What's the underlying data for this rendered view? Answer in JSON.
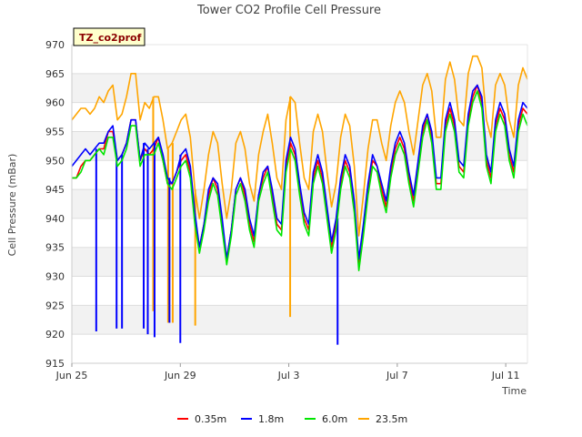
{
  "chart_data": {
    "type": "line",
    "title": "Tower CO2 Profile Cell Pressure",
    "badge": "TZ_co2prof",
    "xlabel": "Time",
    "ylabel": "Cell Pressure (mBar)",
    "ylim": [
      915,
      970
    ],
    "yticks": [
      915,
      920,
      925,
      930,
      935,
      940,
      945,
      950,
      955,
      960,
      965,
      970
    ],
    "xlim": [
      0,
      16.8
    ],
    "xticks": [
      {
        "value": 0,
        "label": "Jun 25"
      },
      {
        "value": 4,
        "label": "Jun 29"
      },
      {
        "value": 8,
        "label": "Jul 3"
      },
      {
        "value": 12,
        "label": "Jul 7"
      },
      {
        "value": 16,
        "label": "Jul 11"
      }
    ],
    "x_units": "days since Jun 25",
    "grid": true,
    "legend_position": "bottom",
    "series": [
      {
        "name": "0.35m",
        "color": "#ff0000",
        "values": [
          947,
          947,
          949,
          950,
          950,
          951,
          952,
          952,
          955,
          955,
          950,
          951,
          953,
          957,
          957,
          950,
          952,
          951,
          952,
          954,
          950,
          946,
          946,
          948,
          950,
          951,
          948,
          940,
          935,
          939,
          944,
          947,
          945,
          939,
          933,
          938,
          945,
          947,
          944,
          939,
          936,
          944,
          947,
          949,
          944,
          939,
          938,
          949,
          953,
          951,
          945,
          940,
          938,
          947,
          950,
          947,
          941,
          935,
          939,
          946,
          950,
          948,
          942,
          932,
          938,
          945,
          950,
          949,
          945,
          942,
          948,
          952,
          954,
          952,
          947,
          943,
          949,
          955,
          958,
          954,
          946,
          946,
          956,
          959,
          956,
          949,
          948,
          957,
          961,
          963,
          960,
          950,
          947,
          956,
          959,
          957,
          951,
          948,
          956,
          959,
          958
        ]
      },
      {
        "name": "1.8m",
        "color": "#0000ff",
        "values": [
          949,
          950,
          951,
          952,
          951,
          952,
          953,
          953,
          955,
          956,
          950,
          951,
          953,
          957,
          957,
          950,
          953,
          952,
          953,
          954,
          951,
          947,
          946,
          948,
          951,
          952,
          949,
          941,
          935,
          939,
          945,
          947,
          946,
          940,
          933,
          938,
          945,
          947,
          945,
          940,
          937,
          944,
          948,
          949,
          945,
          940,
          939,
          950,
          954,
          952,
          946,
          941,
          939,
          948,
          951,
          948,
          942,
          936,
          940,
          947,
          951,
          949,
          943,
          933,
          939,
          946,
          951,
          949,
          946,
          943,
          949,
          953,
          955,
          953,
          948,
          944,
          950,
          956,
          958,
          955,
          947,
          947,
          957,
          960,
          957,
          950,
          949,
          958,
          962,
          963,
          961,
          951,
          948,
          957,
          960,
          958,
          952,
          949,
          957,
          960,
          959
        ]
      },
      {
        "name": "6.0m",
        "color": "#00e600",
        "values": [
          947,
          947,
          948,
          950,
          950,
          951,
          952,
          951,
          954,
          954,
          949,
          950,
          952,
          956,
          956,
          949,
          951,
          951,
          951,
          953,
          950,
          946,
          945,
          947,
          949,
          950,
          947,
          939,
          934,
          938,
          943,
          946,
          944,
          938,
          932,
          937,
          944,
          946,
          943,
          938,
          935,
          943,
          946,
          948,
          943,
          938,
          937,
          948,
          952,
          950,
          944,
          939,
          937,
          946,
          949,
          946,
          940,
          934,
          938,
          945,
          949,
          947,
          941,
          931,
          937,
          944,
          949,
          948,
          944,
          941,
          947,
          951,
          953,
          951,
          946,
          942,
          948,
          954,
          957,
          953,
          945,
          945,
          955,
          958,
          955,
          948,
          947,
          956,
          960,
          962,
          959,
          949,
          946,
          955,
          958,
          956,
          950,
          947,
          955,
          958,
          956
        ]
      },
      {
        "name": "23.5m",
        "color": "#ffa500",
        "values": [
          957,
          958,
          959,
          959,
          958,
          959,
          961,
          960,
          962,
          963,
          957,
          958,
          961,
          965,
          965,
          957,
          960,
          959,
          961,
          961,
          957,
          952,
          953,
          955,
          957,
          958,
          954,
          945,
          940,
          945,
          951,
          955,
          953,
          946,
          940,
          945,
          953,
          955,
          952,
          946,
          943,
          951,
          955,
          958,
          953,
          947,
          945,
          957,
          961,
          960,
          953,
          947,
          945,
          955,
          958,
          955,
          948,
          942,
          946,
          954,
          958,
          956,
          949,
          937,
          944,
          952,
          957,
          957,
          953,
          950,
          956,
          960,
          962,
          960,
          955,
          951,
          957,
          963,
          965,
          962,
          954,
          954,
          964,
          967,
          964,
          957,
          956,
          965,
          968,
          968,
          966,
          957,
          954,
          963,
          965,
          963,
          957,
          954,
          963,
          966,
          964
        ]
      }
    ],
    "spikes": [
      {
        "series": "1.8m",
        "x": 0.9,
        "to": 920.5
      },
      {
        "series": "1.8m",
        "x": 1.65,
        "to": 921
      },
      {
        "series": "1.8m",
        "x": 1.85,
        "to": 921
      },
      {
        "series": "1.8m",
        "x": 2.65,
        "to": 921
      },
      {
        "series": "1.8m",
        "x": 2.8,
        "to": 920
      },
      {
        "series": "1.8m",
        "x": 3.05,
        "to": 919.5
      },
      {
        "series": "1.8m",
        "x": 3.6,
        "to": 922
      },
      {
        "series": "1.8m",
        "x": 4.0,
        "to": 918.5
      },
      {
        "series": "1.8m",
        "x": 9.8,
        "to": 918.2
      },
      {
        "series": "23.5m",
        "x": 3.0,
        "to": 924
      },
      {
        "series": "23.5m",
        "x": 3.55,
        "to": 922
      },
      {
        "series": "23.5m",
        "x": 3.72,
        "to": 922
      },
      {
        "series": "23.5m",
        "x": 4.55,
        "to": 921.5
      },
      {
        "series": "23.5m",
        "x": 8.05,
        "to": 923
      }
    ]
  }
}
